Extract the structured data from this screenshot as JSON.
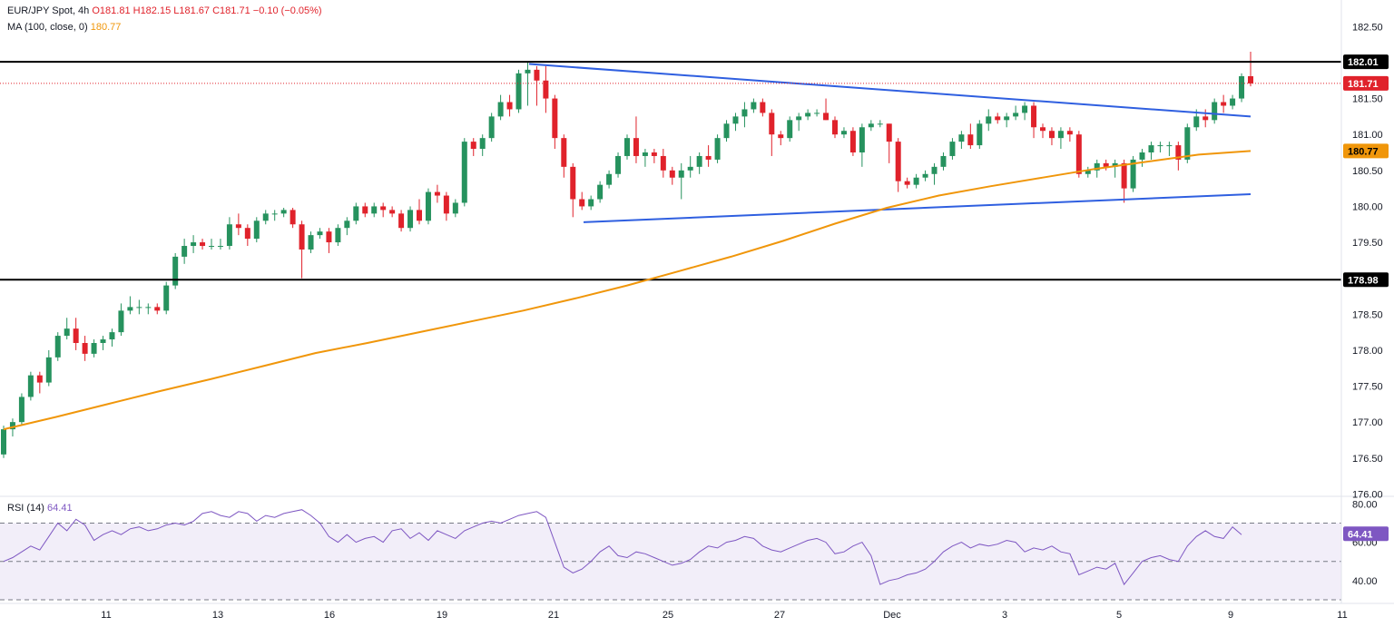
{
  "header": {
    "symbol": "EUR/JPY Spot, 4h",
    "open": "O181.81",
    "high": "H182.15",
    "low": "L181.67",
    "close": "C181.71",
    "change": "−0.10 (−0.05%)",
    "ma_label": "MA (100, close, 0)",
    "ma_value": "180.77",
    "rsi_label": "RSI (14)",
    "rsi_value": "64.41"
  },
  "colors": {
    "up": "#26925e",
    "down": "#e0222b",
    "ma": "#f0960a",
    "trendline": "#2f5fe0",
    "rsi": "#7e57c2",
    "rsi_band": "#ede7f6"
  },
  "chart_data": [
    {
      "type": "candlestick",
      "title": "EUR/JPY Spot, 4h",
      "x_ticks": [
        "11",
        "13",
        "16",
        "19",
        "21",
        "25",
        "27",
        "Dec",
        "3",
        "5",
        "9",
        "11"
      ],
      "y_ticks": [
        "182.50",
        "181.50",
        "181.00",
        "180.50",
        "180.00",
        "179.50",
        "178.50",
        "178.00",
        "177.50",
        "177.00",
        "176.50",
        "176.00"
      ],
      "ylim": [
        176.0,
        182.5
      ],
      "grid": false,
      "ohlc": [
        [
          176.55,
          176.95,
          176.5,
          176.9
        ],
        [
          176.9,
          177.05,
          176.8,
          177.0
        ],
        [
          177.0,
          177.4,
          176.95,
          177.35
        ],
        [
          177.35,
          177.7,
          177.3,
          177.65
        ],
        [
          177.65,
          177.7,
          177.4,
          177.55
        ],
        [
          177.55,
          178.0,
          177.5,
          177.9
        ],
        [
          177.9,
          178.25,
          177.85,
          178.2
        ],
        [
          178.2,
          178.45,
          178.15,
          178.3
        ],
        [
          178.3,
          178.45,
          178.0,
          178.1
        ],
        [
          178.1,
          178.2,
          177.85,
          177.95
        ],
        [
          177.95,
          178.15,
          177.9,
          178.1
        ],
        [
          178.1,
          178.2,
          178.0,
          178.15
        ],
        [
          178.15,
          178.3,
          178.05,
          178.25
        ],
        [
          178.25,
          178.65,
          178.2,
          178.55
        ],
        [
          178.55,
          178.75,
          178.5,
          178.6
        ],
        [
          178.6,
          178.7,
          178.5,
          178.6
        ],
        [
          178.6,
          178.65,
          178.5,
          178.6
        ],
        [
          178.6,
          178.65,
          178.5,
          178.55
        ],
        [
          178.55,
          178.95,
          178.5,
          178.9
        ],
        [
          178.9,
          179.35,
          178.85,
          179.3
        ],
        [
          179.3,
          179.55,
          179.2,
          179.45
        ],
        [
          179.45,
          179.6,
          179.35,
          179.5
        ],
        [
          179.5,
          179.55,
          179.4,
          179.45
        ],
        [
          179.45,
          179.55,
          179.4,
          179.45
        ],
        [
          179.45,
          179.55,
          179.4,
          179.45
        ],
        [
          179.45,
          179.85,
          179.4,
          179.75
        ],
        [
          179.75,
          179.9,
          179.6,
          179.7
        ],
        [
          179.7,
          179.75,
          179.45,
          179.55
        ],
        [
          179.55,
          179.85,
          179.5,
          179.8
        ],
        [
          179.8,
          179.95,
          179.75,
          179.9
        ],
        [
          179.9,
          179.95,
          179.8,
          179.9
        ],
        [
          179.9,
          179.98,
          179.85,
          179.95
        ],
        [
          179.95,
          179.98,
          179.7,
          179.75
        ],
        [
          179.75,
          179.8,
          179.0,
          179.4
        ],
        [
          179.4,
          179.65,
          179.35,
          179.6
        ],
        [
          179.6,
          179.7,
          179.55,
          179.65
        ],
        [
          179.65,
          179.7,
          179.35,
          179.5
        ],
        [
          179.5,
          179.75,
          179.45,
          179.7
        ],
        [
          179.7,
          179.85,
          179.6,
          179.8
        ],
        [
          179.8,
          180.05,
          179.75,
          180.0
        ],
        [
          180.0,
          180.05,
          179.85,
          179.9
        ],
        [
          179.9,
          180.05,
          179.85,
          180.0
        ],
        [
          180.0,
          180.05,
          179.85,
          179.95
        ],
        [
          179.95,
          180.0,
          179.85,
          179.9
        ],
        [
          179.9,
          179.95,
          179.65,
          179.7
        ],
        [
          179.7,
          180.0,
          179.65,
          179.95
        ],
        [
          179.95,
          180.1,
          179.75,
          179.8
        ],
        [
          179.8,
          180.25,
          179.75,
          180.2
        ],
        [
          180.2,
          180.3,
          180.05,
          180.15
        ],
        [
          180.15,
          180.2,
          179.8,
          179.9
        ],
        [
          179.9,
          180.1,
          179.85,
          180.05
        ],
        [
          180.05,
          180.95,
          180.0,
          180.9
        ],
        [
          180.9,
          180.95,
          180.7,
          180.8
        ],
        [
          180.8,
          181.0,
          180.7,
          180.95
        ],
        [
          180.95,
          181.3,
          180.9,
          181.25
        ],
        [
          181.25,
          181.55,
          181.2,
          181.45
        ],
        [
          181.45,
          181.55,
          181.25,
          181.35
        ],
        [
          181.35,
          181.9,
          181.3,
          181.85
        ],
        [
          181.85,
          182.01,
          181.4,
          181.9
        ],
        [
          181.9,
          181.95,
          181.4,
          181.75
        ],
        [
          181.75,
          181.95,
          181.3,
          181.5
        ],
        [
          181.5,
          181.55,
          180.8,
          180.95
        ],
        [
          180.95,
          181.0,
          180.4,
          180.55
        ],
        [
          180.55,
          180.6,
          179.85,
          180.1
        ],
        [
          180.1,
          180.2,
          179.95,
          180.0
        ],
        [
          180.0,
          180.15,
          179.95,
          180.1
        ],
        [
          180.1,
          180.35,
          180.05,
          180.3
        ],
        [
          180.3,
          180.5,
          180.25,
          180.45
        ],
        [
          180.45,
          180.75,
          180.4,
          180.7
        ],
        [
          180.7,
          181.0,
          180.65,
          180.95
        ],
        [
          180.95,
          181.25,
          180.6,
          180.7
        ],
        [
          180.7,
          180.8,
          180.55,
          180.75
        ],
        [
          180.75,
          180.8,
          180.6,
          180.7
        ],
        [
          180.7,
          180.8,
          180.4,
          180.5
        ],
        [
          180.5,
          180.55,
          180.3,
          180.4
        ],
        [
          180.4,
          180.6,
          180.1,
          180.5
        ],
        [
          180.5,
          180.7,
          180.4,
          180.55
        ],
        [
          180.55,
          180.75,
          180.45,
          180.7
        ],
        [
          180.7,
          180.85,
          180.55,
          180.65
        ],
        [
          180.65,
          181.0,
          180.6,
          180.95
        ],
        [
          180.95,
          181.2,
          180.9,
          181.15
        ],
        [
          181.15,
          181.3,
          181.05,
          181.25
        ],
        [
          181.25,
          181.45,
          181.1,
          181.35
        ],
        [
          181.35,
          181.5,
          181.3,
          181.45
        ],
        [
          181.45,
          181.5,
          181.25,
          181.3
        ],
        [
          181.3,
          181.35,
          180.7,
          181.0
        ],
        [
          181.0,
          181.05,
          180.85,
          180.95
        ],
        [
          180.95,
          181.25,
          180.9,
          181.2
        ],
        [
          181.2,
          181.3,
          181.05,
          181.25
        ],
        [
          181.25,
          181.35,
          181.2,
          181.3
        ],
        [
          181.3,
          181.35,
          181.25,
          181.3
        ],
        [
          181.3,
          181.5,
          181.2,
          181.2
        ],
        [
          181.2,
          181.25,
          180.95,
          181.0
        ],
        [
          181.0,
          181.1,
          180.95,
          181.05
        ],
        [
          181.05,
          181.1,
          180.7,
          180.75
        ],
        [
          180.75,
          181.15,
          180.55,
          181.1
        ],
        [
          181.1,
          181.2,
          181.05,
          181.15
        ],
        [
          181.15,
          181.2,
          181.1,
          181.15
        ],
        [
          181.15,
          181.15,
          180.6,
          180.9
        ],
        [
          180.9,
          180.95,
          180.2,
          180.35
        ],
        [
          180.35,
          180.4,
          180.25,
          180.3
        ],
        [
          180.3,
          180.45,
          180.25,
          180.4
        ],
        [
          180.4,
          180.5,
          180.35,
          180.45
        ],
        [
          180.45,
          180.6,
          180.3,
          180.55
        ],
        [
          180.55,
          180.75,
          180.5,
          180.7
        ],
        [
          180.7,
          180.95,
          180.65,
          180.9
        ],
        [
          180.9,
          181.05,
          180.8,
          181.0
        ],
        [
          181.0,
          181.15,
          180.8,
          180.85
        ],
        [
          180.85,
          181.2,
          180.8,
          181.15
        ],
        [
          181.15,
          181.35,
          181.05,
          181.25
        ],
        [
          181.25,
          181.3,
          181.15,
          181.2
        ],
        [
          181.2,
          181.3,
          181.1,
          181.25
        ],
        [
          181.25,
          181.4,
          181.2,
          181.3
        ],
        [
          181.3,
          181.45,
          181.2,
          181.4
        ],
        [
          181.4,
          181.45,
          180.95,
          181.1
        ],
        [
          181.1,
          181.15,
          180.95,
          181.05
        ],
        [
          181.05,
          181.1,
          180.85,
          180.95
        ],
        [
          180.95,
          181.1,
          180.8,
          181.05
        ],
        [
          181.05,
          181.1,
          180.9,
          181.0
        ],
        [
          181.0,
          181.05,
          180.4,
          180.45
        ],
        [
          180.45,
          180.55,
          180.4,
          180.5
        ],
        [
          180.5,
          180.65,
          180.4,
          180.6
        ],
        [
          180.6,
          180.65,
          180.5,
          180.55
        ],
        [
          180.55,
          180.65,
          180.4,
          180.6
        ],
        [
          180.6,
          180.65,
          180.05,
          180.25
        ],
        [
          180.25,
          180.7,
          180.2,
          180.65
        ],
        [
          180.65,
          180.8,
          180.55,
          180.75
        ],
        [
          180.75,
          180.9,
          180.65,
          180.85
        ],
        [
          180.85,
          180.9,
          180.75,
          180.85
        ],
        [
          180.85,
          180.9,
          180.7,
          180.85
        ],
        [
          180.85,
          180.9,
          180.5,
          180.65
        ],
        [
          180.65,
          181.15,
          180.6,
          181.1
        ],
        [
          181.1,
          181.35,
          181.05,
          181.25
        ],
        [
          181.25,
          181.35,
          181.1,
          181.2
        ],
        [
          181.2,
          181.5,
          181.15,
          181.45
        ],
        [
          181.45,
          181.55,
          181.3,
          181.4
        ],
        [
          181.4,
          181.55,
          181.35,
          181.5
        ],
        [
          181.5,
          181.85,
          181.45,
          181.81
        ],
        [
          181.81,
          182.15,
          181.67,
          181.71
        ]
      ],
      "ma_100": [
        176.9,
        177.07,
        177.25,
        177.43,
        177.6,
        177.78,
        177.96,
        178.1,
        178.25,
        178.4,
        178.55,
        178.72,
        178.9,
        179.1,
        179.3,
        179.52,
        179.76,
        179.98,
        180.15,
        180.28,
        180.4,
        180.52,
        180.62,
        180.72,
        180.77
      ],
      "hlines": [
        {
          "value": 182.01,
          "label": "182.01"
        },
        {
          "value": 178.98,
          "label": "178.98"
        }
      ],
      "last_price": {
        "value": 181.71,
        "label": "181.71"
      },
      "ma_tag": {
        "value": 180.77,
        "label": "180.77"
      },
      "trendline_upper": [
        [
          181.98,
          182.01
        ],
        [
          181.25,
          181.25
        ]
      ],
      "trendline_lower": [
        [
          179.78,
          179.78
        ],
        [
          180.17,
          180.17
        ]
      ]
    },
    {
      "type": "line",
      "title": "RSI (14)",
      "y_ticks": [
        "80.00",
        "60.00",
        "40.00"
      ],
      "ylim": [
        30,
        80
      ],
      "bands": [
        70,
        50,
        30
      ],
      "last_value": {
        "value": 64.41,
        "label": "64.41"
      },
      "values": [
        50,
        52,
        55,
        58,
        56,
        63,
        70,
        66,
        72,
        69,
        61,
        64,
        66,
        64,
        67,
        68,
        66,
        67,
        69,
        70,
        69,
        71,
        75,
        76,
        74,
        73,
        76,
        75,
        71,
        74,
        73,
        75,
        76,
        77,
        74,
        70,
        63,
        60,
        64,
        60,
        62,
        63,
        60,
        66,
        67,
        62,
        65,
        61,
        66,
        64,
        62,
        66,
        68,
        70,
        71,
        70,
        72,
        74,
        75,
        76,
        73,
        60,
        47,
        44,
        46,
        50,
        55,
        58,
        53,
        52,
        55,
        54,
        52,
        50,
        48,
        49,
        51,
        55,
        58,
        57,
        60,
        61,
        63,
        62,
        58,
        56,
        55,
        57,
        59,
        61,
        62,
        60,
        54,
        55,
        58,
        60,
        53,
        38,
        40,
        41,
        43,
        44,
        46,
        50,
        55,
        58,
        60,
        57,
        59,
        58,
        59,
        61,
        60,
        55,
        57,
        56,
        58,
        55,
        54,
        43,
        45,
        47,
        46,
        49,
        38,
        44,
        50,
        52,
        53,
        51,
        50,
        58,
        63,
        66,
        63,
        62,
        68,
        64
      ]
    }
  ],
  "x_axis": [
    "11",
    "13",
    "16",
    "19",
    "21",
    "25",
    "27",
    "Dec",
    "3",
    "5",
    "9",
    "11"
  ]
}
